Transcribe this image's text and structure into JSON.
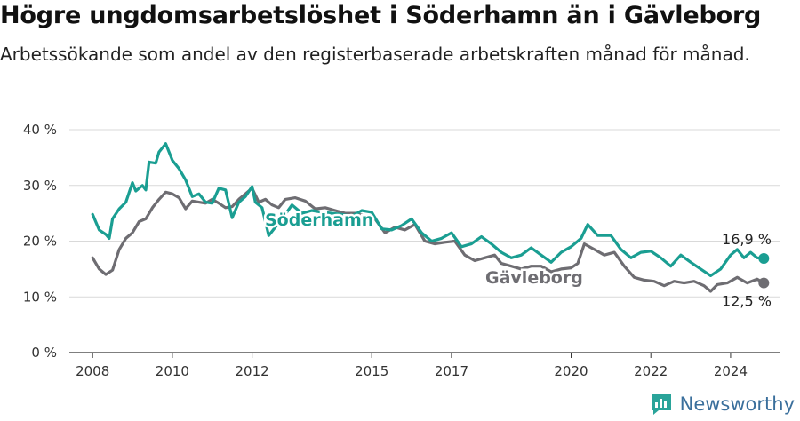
{
  "title": "Högre ungdomsarbetslöshet i Söderhamn än i Gävleborg",
  "subtitle": "Arbetssökande som andel av den registerbaserade arbetskraften månad för månad.",
  "brand": "Newsworthy",
  "colors": {
    "soderhamn": "#1a9e92",
    "gavleborg": "#6e6d72",
    "grid": "#d9d9d9",
    "axis": "#333333",
    "brand": "#3a6f9c"
  },
  "chart_data": {
    "type": "line",
    "x_tick_labels": [
      "2008",
      "2010",
      "2012",
      "2015",
      "2017",
      "2020",
      "2022",
      "2024"
    ],
    "y_tick_labels": [
      "0 %",
      "10 %",
      "20 %",
      "30 %",
      "40 %"
    ],
    "ylim": [
      0,
      40
    ],
    "xlim": [
      "2007-06",
      "2025-04"
    ],
    "grid": true,
    "series": [
      {
        "name": "Söderhamn",
        "end_label": "16,9 %",
        "points": [
          [
            "2008-01",
            24.8
          ],
          [
            "2008-03",
            22.0
          ],
          [
            "2008-05",
            21.2
          ],
          [
            "2008-06",
            20.5
          ],
          [
            "2008-07",
            24.0
          ],
          [
            "2008-09",
            25.8
          ],
          [
            "2008-11",
            27.0
          ],
          [
            "2009-01",
            30.5
          ],
          [
            "2009-02",
            29.0
          ],
          [
            "2009-04",
            30.0
          ],
          [
            "2009-05",
            29.2
          ],
          [
            "2009-06",
            34.2
          ],
          [
            "2009-08",
            34.0
          ],
          [
            "2009-09",
            36.0
          ],
          [
            "2009-11",
            37.5
          ],
          [
            "2010-01",
            34.5
          ],
          [
            "2010-03",
            33.0
          ],
          [
            "2010-05",
            31.0
          ],
          [
            "2010-07",
            28.0
          ],
          [
            "2010-09",
            28.5
          ],
          [
            "2010-11",
            27.0
          ],
          [
            "2011-01",
            26.8
          ],
          [
            "2011-03",
            29.5
          ],
          [
            "2011-05",
            29.2
          ],
          [
            "2011-07",
            24.2
          ],
          [
            "2011-09",
            27.0
          ],
          [
            "2011-11",
            28.0
          ],
          [
            "2012-01",
            29.8
          ],
          [
            "2012-02",
            27.0
          ],
          [
            "2012-04",
            26.0
          ],
          [
            "2012-06",
            21.0
          ],
          [
            "2012-08",
            22.5
          ],
          [
            "2012-10",
            24.0
          ],
          [
            "2013-01",
            26.5
          ],
          [
            "2013-04",
            25.0
          ],
          [
            "2013-07",
            25.5
          ],
          [
            "2013-10",
            25.2
          ],
          [
            "2014-01",
            25.0
          ],
          [
            "2014-04",
            24.8
          ],
          [
            "2014-07",
            24.5
          ],
          [
            "2014-10",
            25.5
          ],
          [
            "2015-01",
            25.2
          ],
          [
            "2015-04",
            22.2
          ],
          [
            "2015-07",
            22.0
          ],
          [
            "2015-10",
            22.8
          ],
          [
            "2016-01",
            24.0
          ],
          [
            "2016-04",
            21.5
          ],
          [
            "2016-07",
            20.0
          ],
          [
            "2016-10",
            20.5
          ],
          [
            "2017-01",
            21.5
          ],
          [
            "2017-04",
            19.0
          ],
          [
            "2017-07",
            19.5
          ],
          [
            "2017-10",
            20.8
          ],
          [
            "2018-01",
            19.5
          ],
          [
            "2018-04",
            18.0
          ],
          [
            "2018-07",
            17.0
          ],
          [
            "2018-10",
            17.5
          ],
          [
            "2019-01",
            18.8
          ],
          [
            "2019-04",
            17.5
          ],
          [
            "2019-07",
            16.2
          ],
          [
            "2019-10",
            18.0
          ],
          [
            "2020-01",
            19.0
          ],
          [
            "2020-04",
            20.5
          ],
          [
            "2020-06",
            23.0
          ],
          [
            "2020-09",
            21.0
          ],
          [
            "2021-01",
            21.0
          ],
          [
            "2021-04",
            18.5
          ],
          [
            "2021-07",
            17.0
          ],
          [
            "2021-10",
            18.0
          ],
          [
            "2022-01",
            18.2
          ],
          [
            "2022-04",
            17.0
          ],
          [
            "2022-07",
            15.5
          ],
          [
            "2022-10",
            17.5
          ],
          [
            "2023-01",
            16.2
          ],
          [
            "2023-04",
            15.0
          ],
          [
            "2023-07",
            13.8
          ],
          [
            "2023-10",
            15.0
          ],
          [
            "2024-01",
            17.5
          ],
          [
            "2024-03",
            18.5
          ],
          [
            "2024-05",
            17.0
          ],
          [
            "2024-07",
            18.0
          ],
          [
            "2024-09",
            17.0
          ],
          [
            "2024-11",
            16.9
          ]
        ]
      },
      {
        "name": "Gävleborg",
        "end_label": "12,5 %",
        "points": [
          [
            "2008-01",
            17.0
          ],
          [
            "2008-03",
            15.0
          ],
          [
            "2008-05",
            14.0
          ],
          [
            "2008-07",
            14.8
          ],
          [
            "2008-09",
            18.5
          ],
          [
            "2008-11",
            20.5
          ],
          [
            "2009-01",
            21.5
          ],
          [
            "2009-03",
            23.5
          ],
          [
            "2009-05",
            24.0
          ],
          [
            "2009-07",
            26.0
          ],
          [
            "2009-09",
            27.5
          ],
          [
            "2009-11",
            28.8
          ],
          [
            "2010-01",
            28.5
          ],
          [
            "2010-03",
            27.8
          ],
          [
            "2010-05",
            25.8
          ],
          [
            "2010-07",
            27.2
          ],
          [
            "2010-09",
            27.0
          ],
          [
            "2010-11",
            26.8
          ],
          [
            "2011-01",
            27.5
          ],
          [
            "2011-03",
            26.8
          ],
          [
            "2011-05",
            26.0
          ],
          [
            "2011-07",
            26.2
          ],
          [
            "2011-09",
            27.5
          ],
          [
            "2011-11",
            28.5
          ],
          [
            "2012-01",
            29.5
          ],
          [
            "2012-03",
            27.0
          ],
          [
            "2012-05",
            27.5
          ],
          [
            "2012-07",
            26.5
          ],
          [
            "2012-09",
            26.0
          ],
          [
            "2012-11",
            27.5
          ],
          [
            "2013-02",
            27.8
          ],
          [
            "2013-05",
            27.2
          ],
          [
            "2013-08",
            25.8
          ],
          [
            "2013-11",
            26.0
          ],
          [
            "2014-02",
            25.5
          ],
          [
            "2014-05",
            25.0
          ],
          [
            "2014-08",
            25.0
          ],
          [
            "2014-11",
            24.5
          ],
          [
            "2015-02",
            24.0
          ],
          [
            "2015-05",
            21.5
          ],
          [
            "2015-08",
            22.5
          ],
          [
            "2015-11",
            22.0
          ],
          [
            "2016-02",
            23.0
          ],
          [
            "2016-05",
            20.0
          ],
          [
            "2016-08",
            19.5
          ],
          [
            "2016-11",
            19.8
          ],
          [
            "2017-02",
            20.0
          ],
          [
            "2017-05",
            17.5
          ],
          [
            "2017-08",
            16.5
          ],
          [
            "2017-11",
            17.0
          ],
          [
            "2018-02",
            17.5
          ],
          [
            "2018-04",
            16.0
          ],
          [
            "2018-07",
            15.5
          ],
          [
            "2018-10",
            15.0
          ],
          [
            "2019-01",
            15.5
          ],
          [
            "2019-04",
            15.5
          ],
          [
            "2019-07",
            14.5
          ],
          [
            "2019-10",
            15.0
          ],
          [
            "2020-01",
            15.2
          ],
          [
            "2020-03",
            16.0
          ],
          [
            "2020-05",
            19.5
          ],
          [
            "2020-08",
            18.5
          ],
          [
            "2020-11",
            17.5
          ],
          [
            "2021-02",
            18.0
          ],
          [
            "2021-05",
            15.5
          ],
          [
            "2021-08",
            13.5
          ],
          [
            "2021-11",
            13.0
          ],
          [
            "2022-02",
            12.8
          ],
          [
            "2022-05",
            12.0
          ],
          [
            "2022-08",
            12.8
          ],
          [
            "2022-11",
            12.5
          ],
          [
            "2023-02",
            12.8
          ],
          [
            "2023-05",
            12.0
          ],
          [
            "2023-07",
            11.0
          ],
          [
            "2023-09",
            12.2
          ],
          [
            "2023-12",
            12.5
          ],
          [
            "2024-03",
            13.5
          ],
          [
            "2024-06",
            12.5
          ],
          [
            "2024-09",
            13.2
          ],
          [
            "2024-11",
            12.5
          ]
        ]
      }
    ]
  }
}
